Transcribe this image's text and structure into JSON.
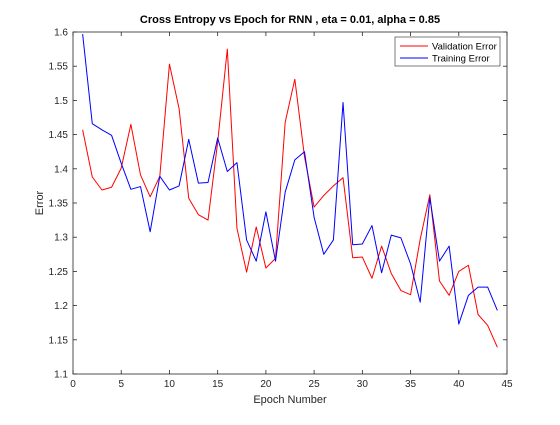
{
  "chart_data": {
    "type": "line",
    "title": "Cross Entropy vs Epoch for RNN , eta = 0.01, alpha = 0.85",
    "xlabel": "Epoch Number",
    "ylabel": "Error",
    "xlim": [
      0,
      45
    ],
    "ylim": [
      1.1,
      1.6
    ],
    "xticks": [
      0,
      5,
      10,
      15,
      20,
      25,
      30,
      35,
      40,
      45
    ],
    "yticks": [
      1.1,
      1.15,
      1.2,
      1.25,
      1.3,
      1.35,
      1.4,
      1.45,
      1.5,
      1.55,
      1.6
    ],
    "xtick_labels": [
      "0",
      "5",
      "10",
      "15",
      "20",
      "25",
      "30",
      "35",
      "40",
      "45"
    ],
    "ytick_labels": [
      "1.1",
      "1.15",
      "1.2",
      "1.25",
      "1.3",
      "1.35",
      "1.4",
      "1.45",
      "1.5",
      "1.55",
      "1.6"
    ],
    "grid": false,
    "legend_position": "top-right",
    "x": [
      1,
      2,
      3,
      4,
      5,
      6,
      7,
      8,
      9,
      10,
      11,
      12,
      13,
      14,
      15,
      16,
      17,
      18,
      19,
      20,
      21,
      22,
      23,
      24,
      25,
      26,
      27,
      28,
      29,
      30,
      31,
      32,
      33,
      34,
      35,
      36,
      37,
      38,
      39,
      40,
      41,
      42,
      43,
      44
    ],
    "series": [
      {
        "name": "Validation Error",
        "color": "#ff0000",
        "values": [
          1.457,
          1.388,
          1.369,
          1.373,
          1.401,
          1.465,
          1.391,
          1.359,
          1.389,
          1.553,
          1.488,
          1.357,
          1.333,
          1.325,
          1.439,
          1.575,
          1.313,
          1.249,
          1.315,
          1.255,
          1.269,
          1.468,
          1.531,
          1.418,
          1.344,
          1.361,
          1.375,
          1.387,
          1.27,
          1.271,
          1.24,
          1.287,
          1.247,
          1.222,
          1.216,
          1.297,
          1.362,
          1.236,
          1.215,
          1.25,
          1.259,
          1.187,
          1.171,
          1.139
        ]
      },
      {
        "name": "Training Error",
        "color": "#0000ff",
        "values": [
          1.597,
          1.466,
          1.457,
          1.449,
          1.408,
          1.37,
          1.374,
          1.308,
          1.389,
          1.369,
          1.375,
          1.443,
          1.379,
          1.38,
          1.445,
          1.396,
          1.409,
          1.296,
          1.265,
          1.337,
          1.265,
          1.366,
          1.413,
          1.425,
          1.329,
          1.275,
          1.296,
          1.497,
          1.289,
          1.29,
          1.317,
          1.248,
          1.303,
          1.299,
          1.261,
          1.205,
          1.358,
          1.265,
          1.287,
          1.173,
          1.215,
          1.227,
          1.227,
          1.193
        ]
      }
    ]
  }
}
